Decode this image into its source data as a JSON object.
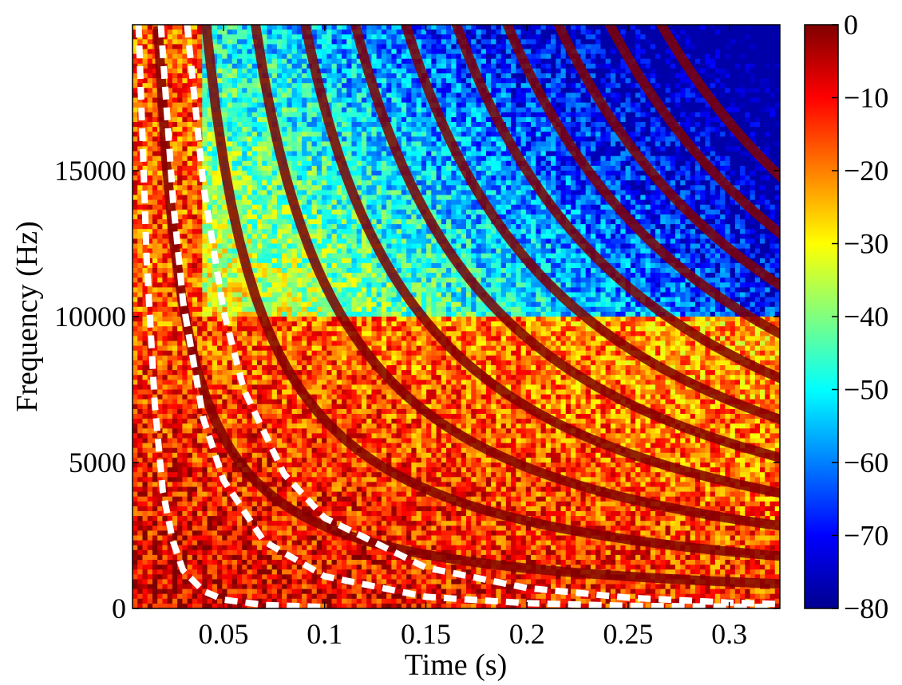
{
  "chart_data": {
    "type": "heatmap",
    "subtype": "spectrogram",
    "title": "",
    "xlabel": "Time (s)",
    "ylabel": "Frequency (Hz)",
    "xlim": [
      0.005,
      0.325
    ],
    "ylim": [
      0,
      20000
    ],
    "x_ticks": [
      0.05,
      0.1,
      0.15,
      0.2,
      0.25,
      0.3
    ],
    "x_tick_labels": [
      "0.05",
      "0.1",
      "0.15",
      "0.2",
      "0.25",
      "0.3"
    ],
    "y_ticks": [
      0,
      5000,
      10000,
      15000
    ],
    "y_tick_labels": [
      "0",
      "5000",
      "10000",
      "15000"
    ],
    "colorbar": {
      "colormap": "jet",
      "range": [
        -80,
        0
      ],
      "ticks": [
        0,
        -10,
        -20,
        -30,
        -40,
        -50,
        -60,
        -70,
        -80
      ],
      "tick_labels": [
        "0",
        "−10",
        "−20",
        "−30",
        "−40",
        "−50",
        "−60",
        "−70",
        "−80"
      ]
    },
    "features": {
      "high_energy_band_upper_hz": 10000,
      "hyperbolic_ridge_count": 11,
      "dashed_overlay_color": "#ffffff"
    },
    "overlays": [
      {
        "style": "white-dashed",
        "points": [
          [
            0.008,
            20000
          ],
          [
            0.012,
            12000
          ],
          [
            0.016,
            7000
          ],
          [
            0.02,
            4000
          ],
          [
            0.025,
            2300
          ],
          [
            0.03,
            1300
          ],
          [
            0.04,
            600
          ],
          [
            0.05,
            300
          ],
          [
            0.07,
            120
          ],
          [
            0.1,
            50
          ]
        ]
      },
      {
        "style": "white-dashed",
        "points": [
          [
            0.019,
            20000
          ],
          [
            0.025,
            14000
          ],
          [
            0.03,
            10500
          ],
          [
            0.04,
            6500
          ],
          [
            0.05,
            4400
          ],
          [
            0.07,
            2300
          ],
          [
            0.1,
            1100
          ],
          [
            0.15,
            400
          ],
          [
            0.2,
            180
          ],
          [
            0.25,
            90
          ],
          [
            0.32,
            50
          ]
        ]
      },
      {
        "style": "white-dashed",
        "points": [
          [
            0.032,
            20000
          ],
          [
            0.04,
            14500
          ],
          [
            0.05,
            10200
          ],
          [
            0.06,
            7500
          ],
          [
            0.08,
            4600
          ],
          [
            0.1,
            3100
          ],
          [
            0.15,
            1400
          ],
          [
            0.2,
            700
          ],
          [
            0.25,
            370
          ],
          [
            0.3,
            200
          ],
          [
            0.325,
            150
          ]
        ]
      }
    ]
  }
}
